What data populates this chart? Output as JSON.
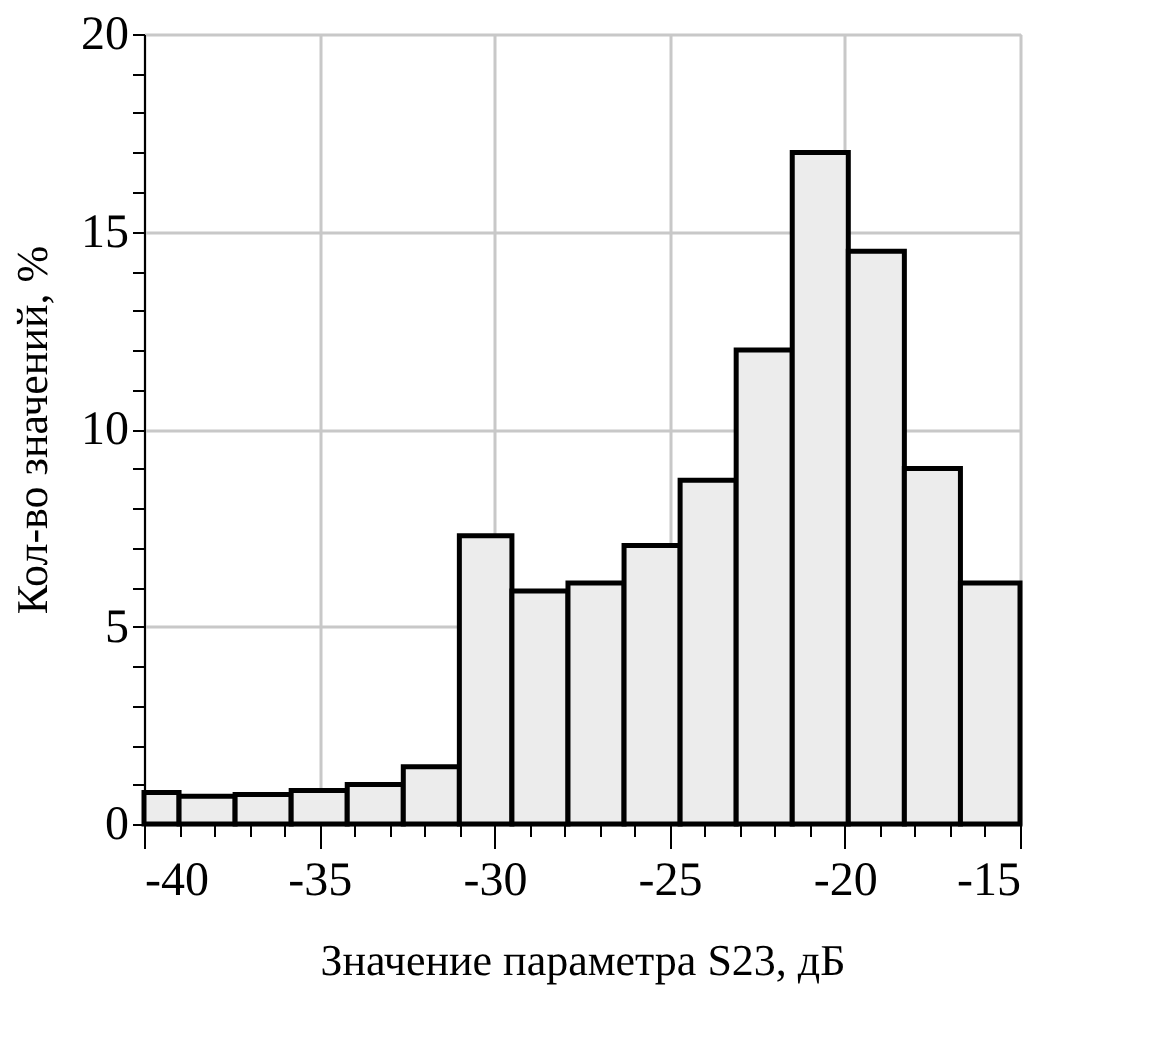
{
  "chart_data": {
    "type": "histogram",
    "xlabel": "Значение параметра S23, дБ",
    "ylabel": "Кол-во значений, %",
    "bins": [
      -40,
      -39,
      -37.4,
      -35.8,
      -34.2,
      -32.6,
      -31.0,
      -29.5,
      -27.9,
      -26.3,
      -24.7,
      -23.1,
      -21.5,
      -19.9,
      -18.3,
      -16.7,
      -15
    ],
    "values": [
      0.8,
      0.7,
      0.75,
      0.85,
      1.0,
      1.45,
      7.3,
      5.9,
      6.1,
      7.05,
      8.7,
      12.0,
      17.0,
      14.5,
      9.0,
      6.1
    ],
    "color": "#ececec",
    "xlim": [
      -40,
      -15
    ],
    "ylim": [
      0,
      20
    ],
    "xticks": [
      -40,
      {
        "value": -39,
        "label": null
      },
      {
        "value": -38,
        "label": null
      },
      {
        "value": -37,
        "label": null
      },
      {
        "value": -36,
        "label": null
      },
      -35,
      {
        "value": -34,
        "label": null
      },
      {
        "value": -33,
        "label": null
      },
      {
        "value": -32,
        "label": null
      },
      {
        "value": -31,
        "label": null
      },
      -30,
      {
        "value": -29,
        "label": null
      },
      {
        "value": -28,
        "label": null
      },
      {
        "value": -27,
        "label": null
      },
      {
        "value": -26,
        "label": null
      },
      -25,
      {
        "value": -24,
        "label": null
      },
      {
        "value": -23,
        "label": null
      },
      {
        "value": -22,
        "label": null
      },
      {
        "value": -21,
        "label": null
      },
      -20,
      {
        "value": -19,
        "label": null
      },
      {
        "value": -18,
        "label": null
      },
      {
        "value": -17,
        "label": null
      },
      {
        "value": -16,
        "label": null
      },
      -15
    ],
    "yticks": [
      0,
      {
        "value": 1,
        "label": null
      },
      {
        "value": 2,
        "label": null
      },
      {
        "value": 3,
        "label": null
      },
      {
        "value": 4,
        "label": null
      },
      5,
      {
        "value": 6,
        "label": null
      },
      {
        "value": 7,
        "label": null
      },
      {
        "value": 8,
        "label": null
      },
      {
        "value": 9,
        "label": null
      },
      10,
      {
        "value": 11,
        "label": null
      },
      {
        "value": 12,
        "label": null
      },
      {
        "value": 13,
        "label": null
      },
      {
        "value": 14,
        "label": null
      },
      15,
      {
        "value": 16,
        "label": null
      },
      {
        "value": 17,
        "label": null
      },
      {
        "value": 18,
        "label": null
      },
      {
        "value": 19,
        "label": null
      },
      20
    ],
    "grid": true
  }
}
